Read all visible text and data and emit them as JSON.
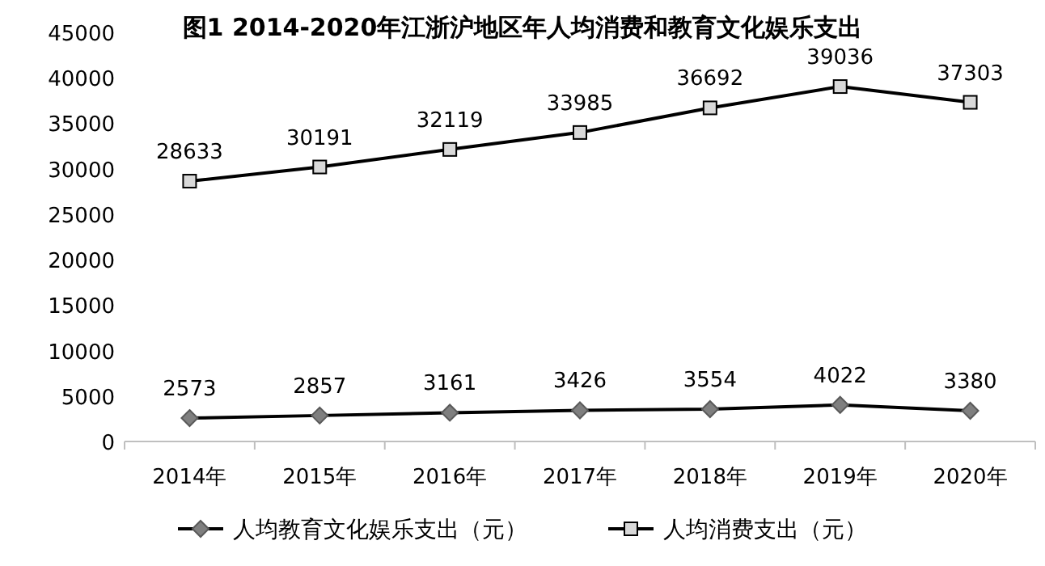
{
  "chart_data": {
    "type": "line",
    "title": "图1 2014-2020年江浙沪地区年人均消费和教育文化娱乐支出",
    "categories": [
      "2014年",
      "2015年",
      "2016年",
      "2017年",
      "2018年",
      "2019年",
      "2020年"
    ],
    "series": [
      {
        "name": "人均教育文化娱乐支出（元）",
        "color": "#000000",
        "marker": "diamond",
        "values": [
          2573,
          2857,
          3161,
          3426,
          3554,
          4022,
          3380
        ]
      },
      {
        "name": "人均消费支出（元）",
        "color": "#000000",
        "marker": "square",
        "values": [
          28633,
          30191,
          32119,
          33985,
          36692,
          39036,
          37303
        ]
      }
    ],
    "ylim": [
      0,
      45000
    ],
    "yticks": [
      0,
      5000,
      10000,
      15000,
      20000,
      25000,
      30000,
      35000,
      40000,
      45000
    ],
    "data_labels": true,
    "legend": "bottom",
    "line_style": "solid"
  }
}
